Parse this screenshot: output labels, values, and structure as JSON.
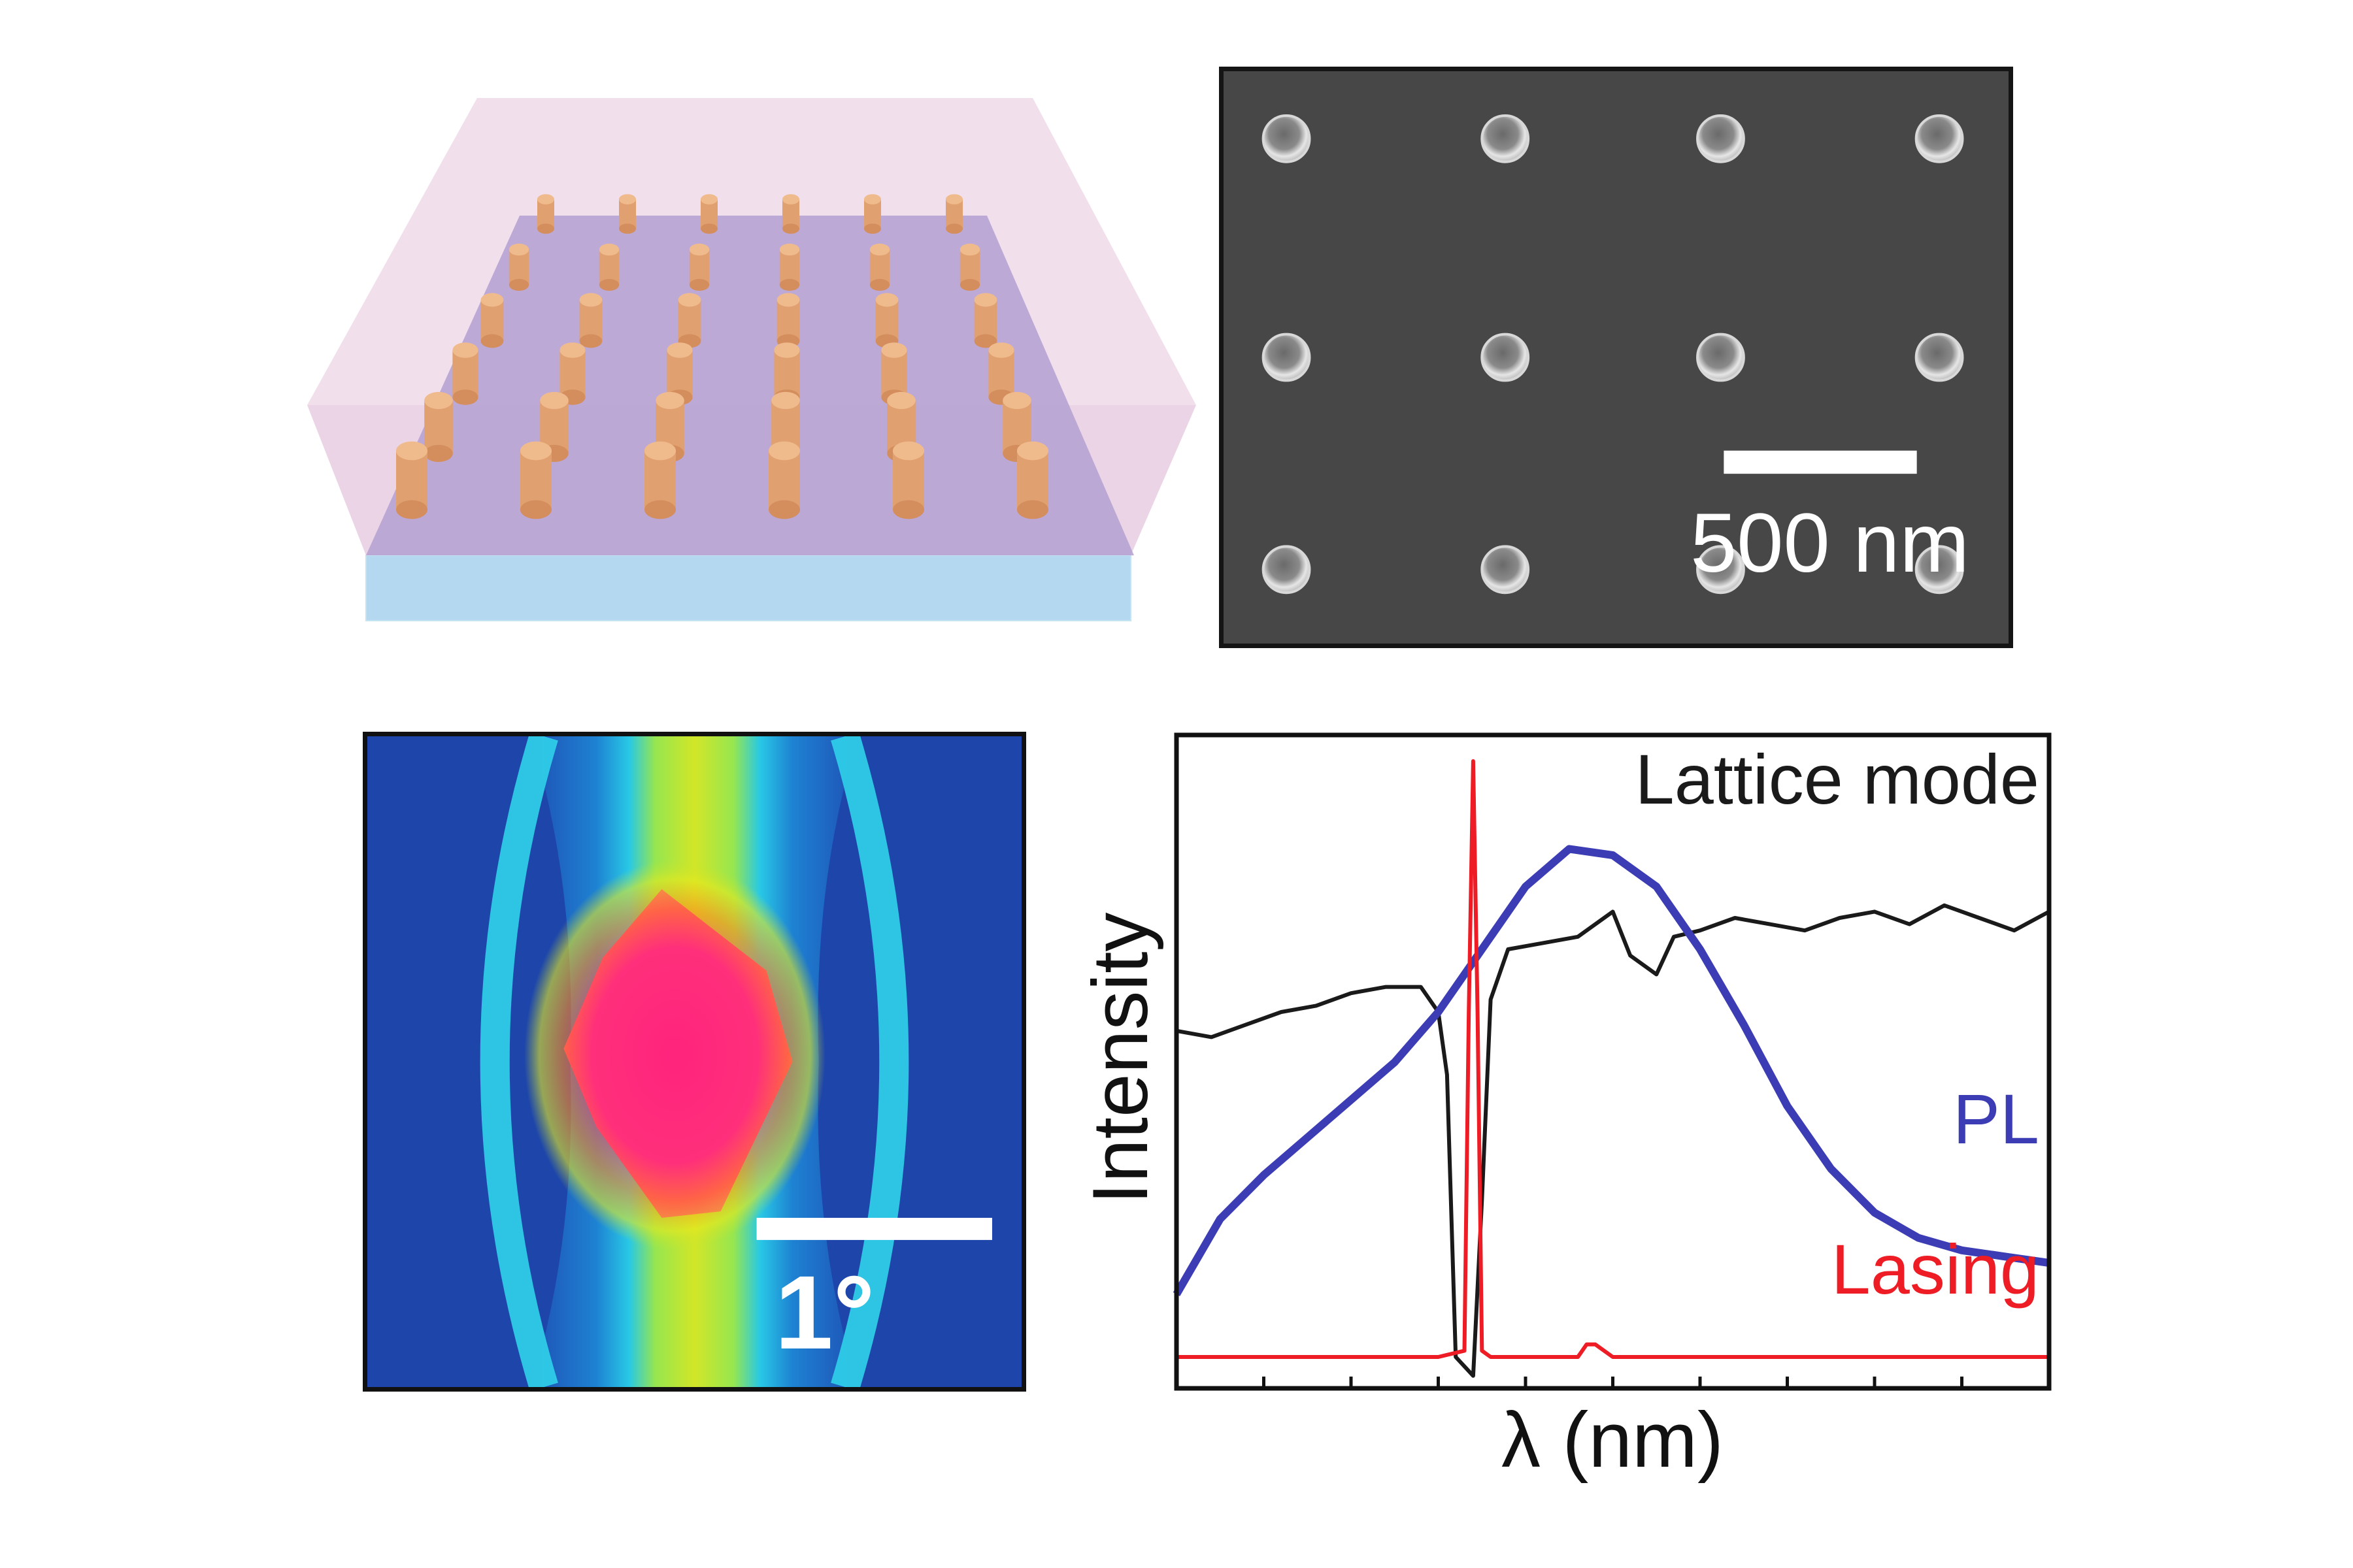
{
  "panels": {
    "sem": {
      "scale_bar_label": "500 nm"
    },
    "far_field": {
      "scale_bar_label": "1°"
    }
  },
  "colors": {
    "lattice_mode": "#1a1a1a",
    "pl": "#3c3cb4",
    "lasing": "#ee1c24",
    "nanoparticle": "#e0a070",
    "cladding": "#d8b4d8",
    "substrate": "#b4d8f0",
    "sem_background": "#474747"
  },
  "chart_data": {
    "type": "line",
    "title": "",
    "xlabel": "λ (nm)",
    "ylabel": "Intensity",
    "x_tick_labels": [],
    "y_tick_labels": [],
    "xlim": [
      0,
      100
    ],
    "ylim": [
      0,
      1
    ],
    "grid": false,
    "legend": "inline labels at right",
    "series": [
      {
        "name": "Lattice mode",
        "color": "#1a1a1a",
        "x": [
          0,
          4,
          8,
          12,
          16,
          20,
          24,
          28,
          30,
          31,
          32,
          34,
          35,
          36,
          38,
          42,
          46,
          50,
          52,
          55,
          57,
          60,
          64,
          68,
          72,
          76,
          80,
          84,
          88,
          92,
          96,
          100
        ],
        "y": [
          0.57,
          0.56,
          0.58,
          0.6,
          0.61,
          0.63,
          0.64,
          0.64,
          0.6,
          0.5,
          0.05,
          0.02,
          0.3,
          0.62,
          0.7,
          0.71,
          0.72,
          0.76,
          0.69,
          0.66,
          0.72,
          0.73,
          0.75,
          0.74,
          0.73,
          0.75,
          0.76,
          0.74,
          0.77,
          0.75,
          0.73,
          0.76
        ]
      },
      {
        "name": "PL",
        "color": "#3c3cb4",
        "x": [
          0,
          5,
          10,
          15,
          20,
          25,
          30,
          35,
          40,
          45,
          50,
          55,
          60,
          65,
          70,
          75,
          80,
          85,
          90,
          95,
          100
        ],
        "y": [
          0.15,
          0.27,
          0.34,
          0.4,
          0.46,
          0.52,
          0.6,
          0.7,
          0.8,
          0.86,
          0.85,
          0.8,
          0.7,
          0.58,
          0.45,
          0.35,
          0.28,
          0.24,
          0.22,
          0.21,
          0.2
        ]
      },
      {
        "name": "Lasing",
        "color": "#ee1c24",
        "x": [
          0,
          10,
          20,
          30,
          33,
          33.5,
          34,
          34.5,
          35,
          36,
          40,
          46,
          47,
          48,
          50,
          56,
          60,
          70,
          80,
          90,
          100
        ],
        "y": [
          0.05,
          0.05,
          0.05,
          0.05,
          0.06,
          0.6,
          1.0,
          0.6,
          0.06,
          0.05,
          0.05,
          0.05,
          0.07,
          0.07,
          0.05,
          0.05,
          0.05,
          0.05,
          0.05,
          0.05,
          0.05
        ]
      }
    ]
  }
}
